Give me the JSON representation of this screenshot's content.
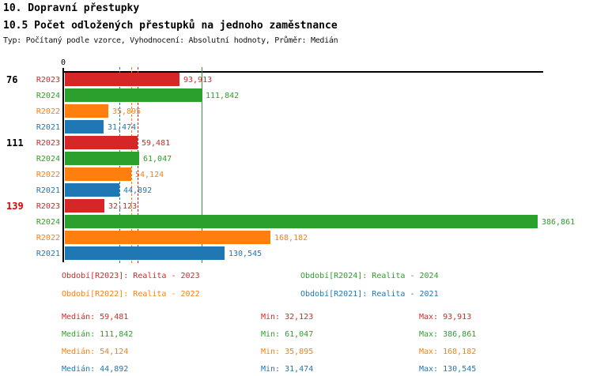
{
  "header": {
    "title": "10. Dopravní přestupky",
    "subtitle": "10.5 Počet odložených přestupků na jednoho zaměstnance",
    "meta": "Typ: Počítaný podle vzorce, Vyhodnocení: Absolutní hodnoty, Průměr: Medián"
  },
  "colors": {
    "R2023": "#d62728",
    "R2024": "#2ca02c",
    "R2022": "#ff7f0e",
    "R2021": "#1f77b4",
    "group_label_default": "#000000",
    "group_label_highlight": "#e00000",
    "axis": "#000000"
  },
  "chart_data": {
    "type": "bar",
    "orientation": "horizontal",
    "value_axis_start_label": "0",
    "value_format": "#,###",
    "grid": false,
    "legend_position": "bottom",
    "series_order": [
      "R2023",
      "R2024",
      "R2022",
      "R2021"
    ],
    "groups": [
      {
        "label": "76",
        "highlighted": false,
        "bars": [
          {
            "series": "R2023",
            "value": 93913,
            "value_label": "93,913"
          },
          {
            "series": "R2024",
            "value": 111842,
            "value_label": "111,842"
          },
          {
            "series": "R2022",
            "value": 35895,
            "value_label": "35,895"
          },
          {
            "series": "R2021",
            "value": 31474,
            "value_label": "31,474"
          }
        ]
      },
      {
        "label": "111",
        "highlighted": false,
        "bars": [
          {
            "series": "R2023",
            "value": 59481,
            "value_label": "59,481"
          },
          {
            "series": "R2024",
            "value": 61047,
            "value_label": "61,047"
          },
          {
            "series": "R2022",
            "value": 54124,
            "value_label": "54,124"
          },
          {
            "series": "R2021",
            "value": 44892,
            "value_label": "44,892"
          }
        ]
      },
      {
        "label": "139",
        "highlighted": true,
        "bars": [
          {
            "series": "R2023",
            "value": 32123,
            "value_label": "32,123"
          },
          {
            "series": "R2024",
            "value": 386861,
            "value_label": "386,861"
          },
          {
            "series": "R2022",
            "value": 168182,
            "value_label": "168,182"
          },
          {
            "series": "R2021",
            "value": 130545,
            "value_label": "130,545"
          }
        ]
      }
    ],
    "median_lines": [
      {
        "series": "R2023",
        "value": 59481,
        "style": "dashed"
      },
      {
        "series": "R2024",
        "value": 111842,
        "style": "solid"
      },
      {
        "series": "R2022",
        "value": 54124,
        "style": "dashed"
      },
      {
        "series": "R2021",
        "value": 44892,
        "style": "dashed"
      }
    ]
  },
  "legend": {
    "items": [
      {
        "series": "R2023",
        "text": "Období[R2023]: Realita - 2023"
      },
      {
        "series": "R2024",
        "text": "Období[R2024]: Realita - 2024"
      },
      {
        "series": "R2022",
        "text": "Období[R2022]: Realita - 2022"
      },
      {
        "series": "R2021",
        "text": "Období[R2021]: Realita - 2021"
      }
    ]
  },
  "stats": {
    "rows": [
      {
        "series": "R2023",
        "median": "Medián: 59,481",
        "min": "Min: 32,123",
        "max": "Max: 93,913"
      },
      {
        "series": "R2024",
        "median": "Medián: 111,842",
        "min": "Min: 61,047",
        "max": "Max: 386,861"
      },
      {
        "series": "R2022",
        "median": "Medián: 54,124",
        "min": "Min: 35,895",
        "max": "Max: 168,182"
      },
      {
        "series": "R2021",
        "median": "Medián: 44,892",
        "min": "Min: 31,474",
        "max": "Max: 130,545"
      }
    ]
  }
}
